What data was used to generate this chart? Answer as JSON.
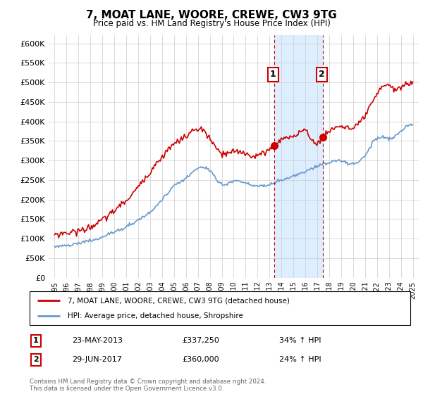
{
  "title": "7, MOAT LANE, WOORE, CREWE, CW3 9TG",
  "subtitle": "Price paid vs. HM Land Registry's House Price Index (HPI)",
  "legend_line1": "7, MOAT LANE, WOORE, CREWE, CW3 9TG (detached house)",
  "legend_line2": "HPI: Average price, detached house, Shropshire",
  "sale1_date": "23-MAY-2013",
  "sale1_price": "£337,250",
  "sale1_hpi": "34% ↑ HPI",
  "sale1_year": 2013.38,
  "sale1_value": 337250,
  "sale2_date": "29-JUN-2017",
  "sale2_price": "£360,000",
  "sale2_hpi": "24% ↑ HPI",
  "sale2_year": 2017.49,
  "sale2_value": 360000,
  "footer": "Contains HM Land Registry data © Crown copyright and database right 2024.\nThis data is licensed under the Open Government Licence v3.0.",
  "hpi_color": "#6699cc",
  "price_color": "#cc0000",
  "highlight_color": "#ddeeff",
  "vline_color": "#cc0000",
  "ylim": [
    0,
    620000
  ],
  "yticks": [
    0,
    50000,
    100000,
    150000,
    200000,
    250000,
    300000,
    350000,
    400000,
    450000,
    500000,
    550000,
    600000
  ],
  "ytick_labels": [
    "£0",
    "£50K",
    "£100K",
    "£150K",
    "£200K",
    "£250K",
    "£300K",
    "£350K",
    "£400K",
    "£450K",
    "£500K",
    "£550K",
    "£600K"
  ],
  "xlim": [
    1994.5,
    2025.5
  ],
  "xticks": [
    1995,
    1996,
    1997,
    1998,
    1999,
    2000,
    2001,
    2002,
    2003,
    2004,
    2005,
    2006,
    2007,
    2008,
    2009,
    2010,
    2011,
    2012,
    2013,
    2014,
    2015,
    2016,
    2017,
    2018,
    2019,
    2020,
    2021,
    2022,
    2023,
    2024,
    2025
  ]
}
